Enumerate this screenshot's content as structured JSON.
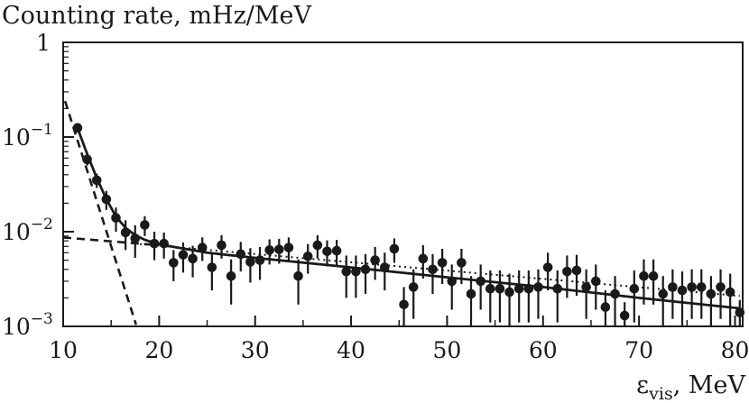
{
  "chart_data": {
    "type": "scatter",
    "title": "Counting rate, mHz/MeV",
    "xlabel": {
      "main": "ε",
      "sub": "vis",
      "unit": ", MeV"
    },
    "xlim": [
      10,
      80.8
    ],
    "ylim": [
      0.001,
      1
    ],
    "yscale": "log",
    "grid": false,
    "legend": "none",
    "xticks": [
      {
        "value": 10,
        "label": "10"
      },
      {
        "value": 20,
        "label": "20"
      },
      {
        "value": 30,
        "label": "30"
      },
      {
        "value": 40,
        "label": "40"
      },
      {
        "value": 50,
        "label": "50"
      },
      {
        "value": 60,
        "label": "60"
      },
      {
        "value": 70,
        "label": "70"
      },
      {
        "value": 80,
        "label": "80"
      }
    ],
    "yticks": [
      {
        "value": 1,
        "base": "1",
        "exp": ""
      },
      {
        "value": 0.1,
        "base": "10",
        "exp": "−1"
      },
      {
        "value": 0.01,
        "base": "10",
        "exp": "−2"
      },
      {
        "value": 0.001,
        "base": "10",
        "exp": "−3"
      }
    ],
    "series": [
      {
        "style": "points with error bars",
        "x": [
          11.5,
          12.5,
          13.5,
          14.5,
          15.5,
          16.5,
          17.5,
          18.5,
          19.5,
          20.5,
          21.5,
          22.5,
          23.5,
          24.5,
          25.5,
          26.5,
          27.5,
          28.5,
          29.5,
          30.5,
          31.5,
          32.5,
          33.5,
          34.5,
          35.5,
          36.5,
          37.5,
          38.5,
          39.5,
          40.5,
          41.5,
          42.5,
          43.5,
          44.5,
          45.5,
          46.5,
          47.5,
          48.5,
          49.5,
          50.5,
          51.5,
          52.5,
          53.5,
          54.5,
          55.5,
          56.5,
          57.5,
          58.5,
          59.5,
          60.5,
          61.5,
          62.5,
          63.5,
          64.5,
          65.5,
          66.5,
          67.5,
          68.5,
          69.5,
          70.5,
          71.5,
          72.5,
          73.5,
          74.5,
          75.5,
          76.5,
          77.5,
          78.5,
          79.5,
          80.5
        ],
        "y": [
          0.125,
          0.058,
          0.035,
          0.022,
          0.014,
          0.0098,
          0.0085,
          0.0118,
          0.0075,
          0.0075,
          0.0047,
          0.0057,
          0.0052,
          0.0068,
          0.0042,
          0.0072,
          0.0034,
          0.0058,
          0.0048,
          0.005,
          0.0064,
          0.0065,
          0.0068,
          0.0034,
          0.0055,
          0.0072,
          0.0062,
          0.0063,
          0.0038,
          0.0038,
          0.004,
          0.005,
          0.0042,
          0.0066,
          0.0017,
          0.0026,
          0.0052,
          0.004,
          0.0047,
          0.003,
          0.0047,
          0.0022,
          0.003,
          0.0025,
          0.0025,
          0.0023,
          0.0025,
          0.0025,
          0.0026,
          0.0042,
          0.0025,
          0.0038,
          0.0039,
          0.0026,
          0.003,
          0.0016,
          0.0022,
          0.0013,
          0.0025,
          0.0034,
          0.0034,
          0.0022,
          0.0026,
          0.0024,
          0.0026,
          0.0026,
          0.0022,
          0.0026,
          0.0023,
          0.0014
        ],
        "err_lo": [
          0.112,
          0.05,
          0.029,
          0.017,
          0.01,
          0.0064,
          0.0053,
          0.009,
          0.005,
          0.0052,
          0.003,
          0.0037,
          0.0033,
          0.0049,
          0.0024,
          0.0052,
          0.0017,
          0.0038,
          0.0029,
          0.0031,
          0.0045,
          0.0046,
          0.0049,
          0.0017,
          0.0036,
          0.0052,
          0.0043,
          0.0044,
          0.002,
          0.002,
          0.0022,
          0.0031,
          0.0024,
          0.0047,
          0.001,
          0.0012,
          0.0032,
          0.0022,
          0.0028,
          0.0015,
          0.0028,
          0.001,
          0.0015,
          0.0011,
          0.0011,
          0.001,
          0.0011,
          0.0011,
          0.0012,
          0.0024,
          0.0011,
          0.002,
          0.0021,
          0.0012,
          0.0015,
          0.001,
          0.001,
          0.001,
          0.0011,
          0.0017,
          0.0017,
          0.001,
          0.0012,
          0.001,
          0.0012,
          0.0012,
          0.001,
          0.0012,
          0.001,
          0.001
        ],
        "err_hi": [
          0.14,
          0.066,
          0.041,
          0.027,
          0.018,
          0.0132,
          0.0117,
          0.0146,
          0.01,
          0.0098,
          0.0064,
          0.0077,
          0.0071,
          0.0087,
          0.006,
          0.0092,
          0.0051,
          0.0078,
          0.0067,
          0.0069,
          0.0083,
          0.0084,
          0.0087,
          0.0051,
          0.0074,
          0.0092,
          0.0081,
          0.0082,
          0.0056,
          0.0056,
          0.0058,
          0.0069,
          0.006,
          0.0085,
          0.0026,
          0.004,
          0.0072,
          0.0058,
          0.0066,
          0.0045,
          0.0066,
          0.0034,
          0.0045,
          0.0039,
          0.0039,
          0.0036,
          0.0039,
          0.0039,
          0.004,
          0.006,
          0.0039,
          0.0056,
          0.0057,
          0.004,
          0.0045,
          0.0024,
          0.0034,
          0.0018,
          0.0039,
          0.0051,
          0.0051,
          0.0034,
          0.004,
          0.0038,
          0.004,
          0.004,
          0.0034,
          0.004,
          0.0036,
          0.0019
        ]
      }
    ],
    "curves": [
      {
        "style": "dashed",
        "x": [
          10.2,
          17.6
        ],
        "y": [
          0.24,
          0.00104
        ]
      },
      {
        "style": "dashed",
        "x": [
          10,
          20
        ],
        "y": [
          0.0087,
          0.0072
        ]
      },
      {
        "style": "dotted",
        "x": [
          18,
          80.5
        ],
        "y": [
          0.0074,
          0.0021
        ]
      },
      {
        "style": "solid",
        "x": [
          11.5,
          12.5,
          13.5,
          14.5,
          15.5,
          16.5,
          17.5,
          18.5,
          19.5,
          20.5,
          25,
          30,
          40,
          50,
          60,
          70,
          80.5
        ],
        "y": [
          0.124,
          0.066,
          0.037,
          0.022,
          0.0145,
          0.011,
          0.0092,
          0.0082,
          0.0076,
          0.0072,
          0.006,
          0.0053,
          0.0042,
          0.0033,
          0.0026,
          0.002,
          0.00155
        ]
      }
    ]
  }
}
